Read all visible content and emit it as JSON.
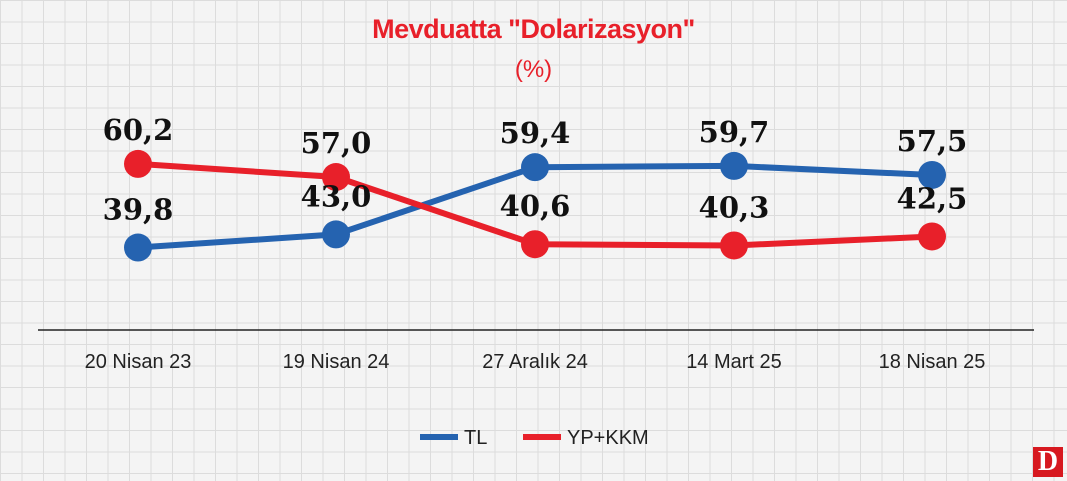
{
  "title": "Mevduatta \"Dolarizasyon\"",
  "subtitle": "(%)",
  "logo_text": "D",
  "colors": {
    "title": "#e8202a",
    "tl": "#2563b0",
    "yp": "#e8202a"
  },
  "chart_data": {
    "type": "line",
    "title": "Mevduatta \"Dolarizasyon\"",
    "subtitle": "(%)",
    "categories": [
      "20 Nisan 23",
      "19 Nisan 24",
      "27 Aralık 24",
      "14 Mart 25",
      "18 Nisan 25"
    ],
    "series": [
      {
        "name": "TL",
        "color": "#2563b0",
        "values": [
          39.8,
          43.0,
          59.4,
          59.7,
          57.5
        ],
        "labels": [
          "39,8",
          "43,0",
          "59,4",
          "59,7",
          "57,5"
        ]
      },
      {
        "name": "YP+KKM",
        "color": "#e8202a",
        "values": [
          60.2,
          57.0,
          40.6,
          40.3,
          42.5
        ],
        "labels": [
          "60,2",
          "57,0",
          "40,6",
          "40,3",
          "42,5"
        ]
      }
    ],
    "legend_position": "bottom-center",
    "grid": true
  }
}
